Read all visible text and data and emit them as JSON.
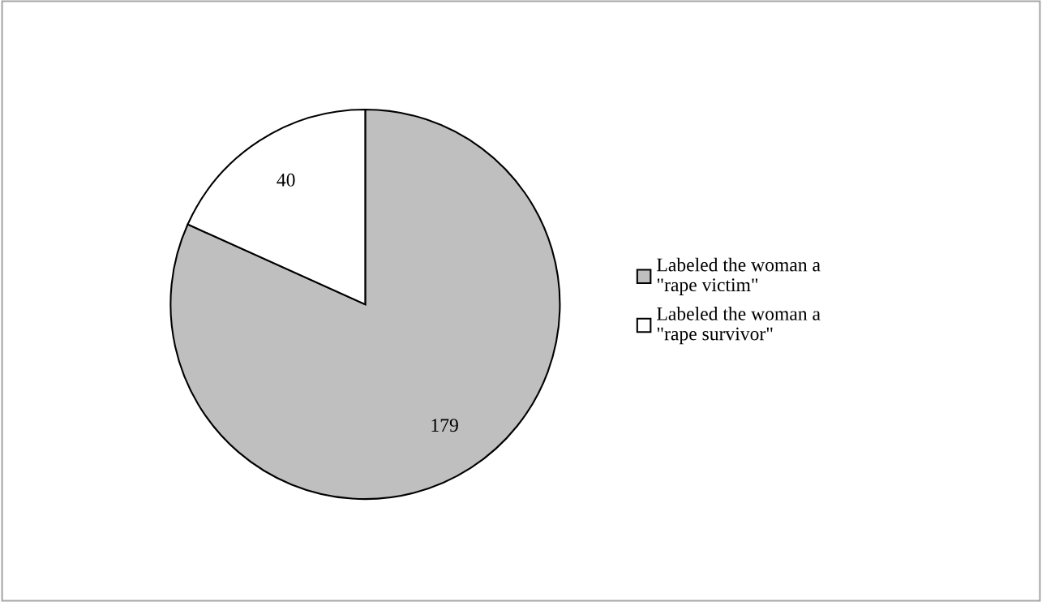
{
  "chart_data": {
    "type": "pie",
    "categories": [
      "Labeled the woman a\n\"rape victim\"",
      "Labeled the woman a\n\"rape survivor\""
    ],
    "values": [
      179,
      40
    ],
    "colors": [
      "#bfbfbf",
      "#ffffff"
    ],
    "data_labels": true,
    "legend": "right"
  }
}
